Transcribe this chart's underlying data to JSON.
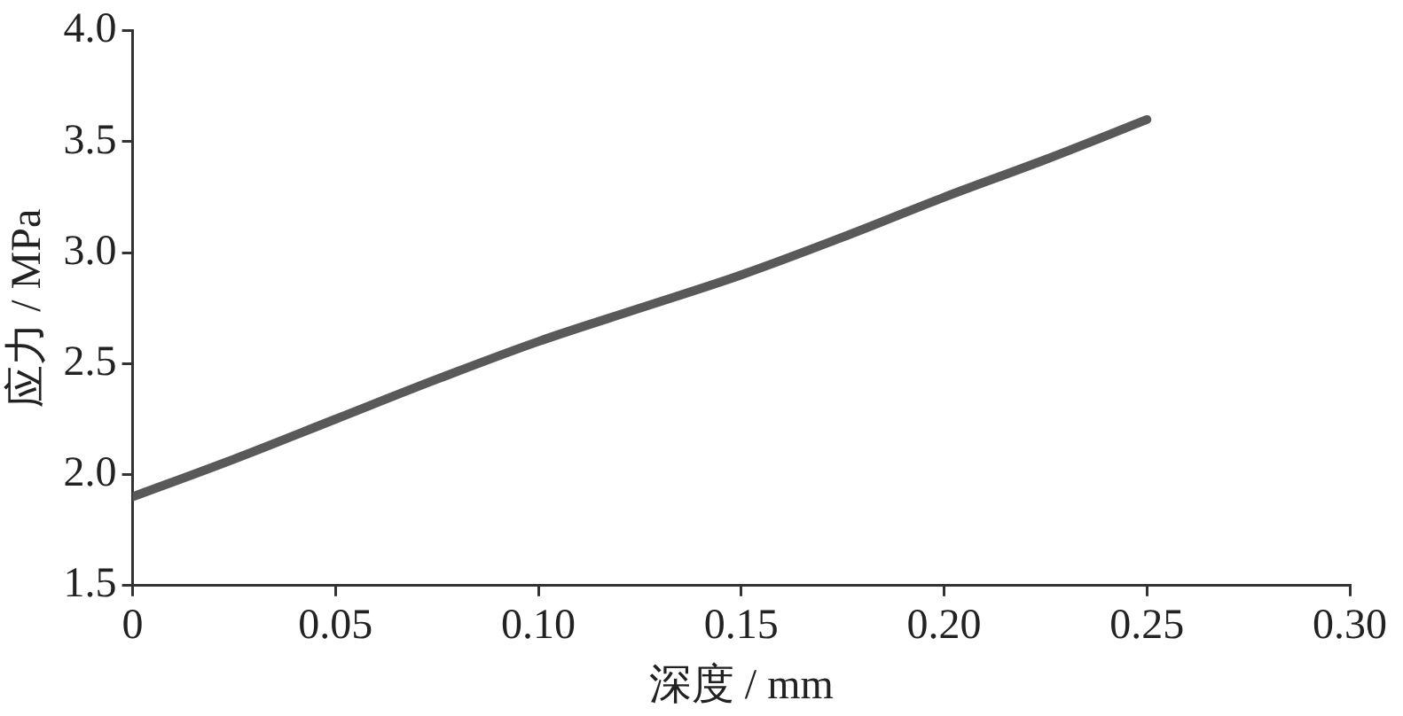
{
  "chart_data": {
    "type": "line",
    "xlabel": "深度 / mm",
    "ylabel": "应力 / MPa",
    "x": [
      0,
      0.025,
      0.05,
      0.075,
      0.1,
      0.125,
      0.15,
      0.175,
      0.2,
      0.225,
      0.25
    ],
    "series": [
      {
        "color": "#595959",
        "values": [
          1.9,
          2.07,
          2.25,
          2.43,
          2.6,
          2.75,
          2.9,
          3.07,
          3.25,
          3.42,
          3.6
        ]
      }
    ],
    "xlim": [
      0,
      0.3
    ],
    "xticks": [
      0,
      0.05,
      {
        "value": 0.1,
        "label": "0.10"
      },
      0.15,
      {
        "value": 0.2,
        "label": "0.20"
      },
      0.25,
      {
        "value": 0.3,
        "label": "0.30"
      }
    ],
    "ylim": [
      1.5,
      4
    ],
    "yticks": [
      1.5,
      {
        "value": 2,
        "label": "2.0"
      },
      2.5,
      {
        "value": 3,
        "label": "3.0"
      },
      3.5,
      {
        "value": 4,
        "label": "4.0"
      }
    ],
    "grid": false,
    "legend": false,
    "marker": "none",
    "line_style": "solid"
  }
}
